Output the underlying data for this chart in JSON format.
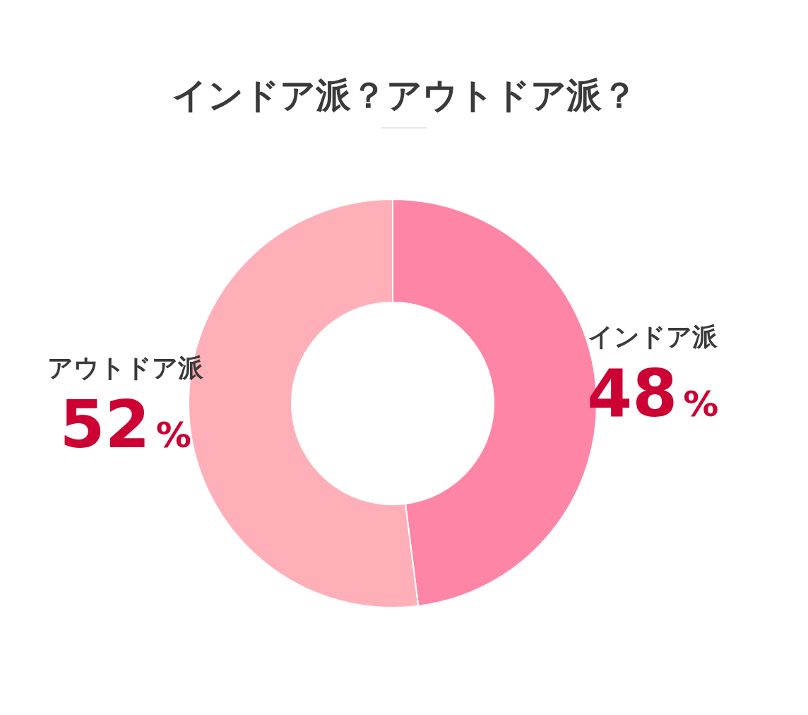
{
  "chart_data": {
    "type": "donut",
    "title": "インドア派？アウトドア派？",
    "categories": [
      "インドア派",
      "アウトドア派"
    ],
    "values": [
      48,
      52
    ],
    "colors": [
      "#ff85a6",
      "#ffafb8"
    ],
    "value_labels": [
      "48%",
      "52%"
    ]
  }
}
